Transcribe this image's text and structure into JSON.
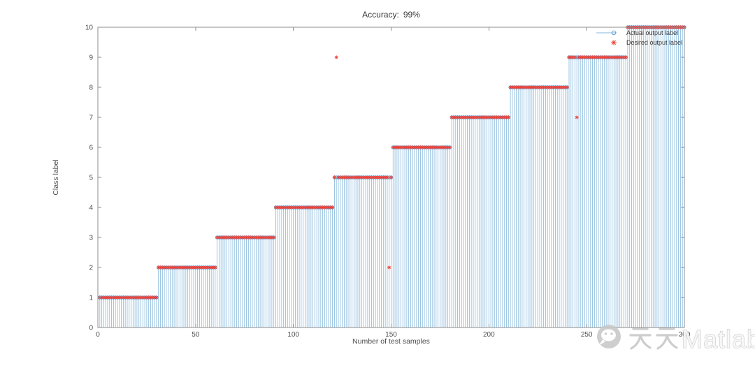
{
  "figure": {
    "background": "#ffffff"
  },
  "chart_data": {
    "type": "stem",
    "title": "Accuracy：99%",
    "accuracy": "99%",
    "xlabel": "Number of test samples",
    "ylabel": "Class label",
    "xlim": [
      0,
      300
    ],
    "ylim": [
      0,
      10
    ],
    "xticks": [
      0,
      50,
      100,
      150,
      200,
      250,
      300
    ],
    "yticks": [
      0,
      1,
      2,
      3,
      4,
      5,
      6,
      7,
      8,
      9,
      10
    ],
    "n_samples": 300,
    "samples_per_class": 30,
    "num_classes": 10,
    "grid": false,
    "legend": {
      "position": "top-right-inside",
      "border": "none",
      "entries": [
        "Actual output label",
        "Desired output label"
      ]
    },
    "series": [
      {
        "name": "Actual output label",
        "marker": "circle",
        "line_color": "#85b8dc",
        "marker_color": "#4f97d2",
        "values_rule": "class = ceil(sample/30) for sample 1..300 (staircase: 30 samples per class, classes 1-10)"
      },
      {
        "name": "Desired output label",
        "marker": "asterisk",
        "color": "#ef392e",
        "values_rule": "same staircase as actual output except 3 outlier samples",
        "outliers": [
          {
            "sample": 122,
            "label": 9
          },
          {
            "sample": 149,
            "label": 2
          },
          {
            "sample": 245,
            "label": 7
          }
        ]
      }
    ],
    "axis_color": "#8d8d8d",
    "tick_label_color": "#4c4c4c",
    "text_color": "#383838"
  },
  "watermark": {
    "icon": "wechat-icon",
    "cjk": "天天",
    "latin": "Matlab",
    "color": "#c9c9c9"
  }
}
